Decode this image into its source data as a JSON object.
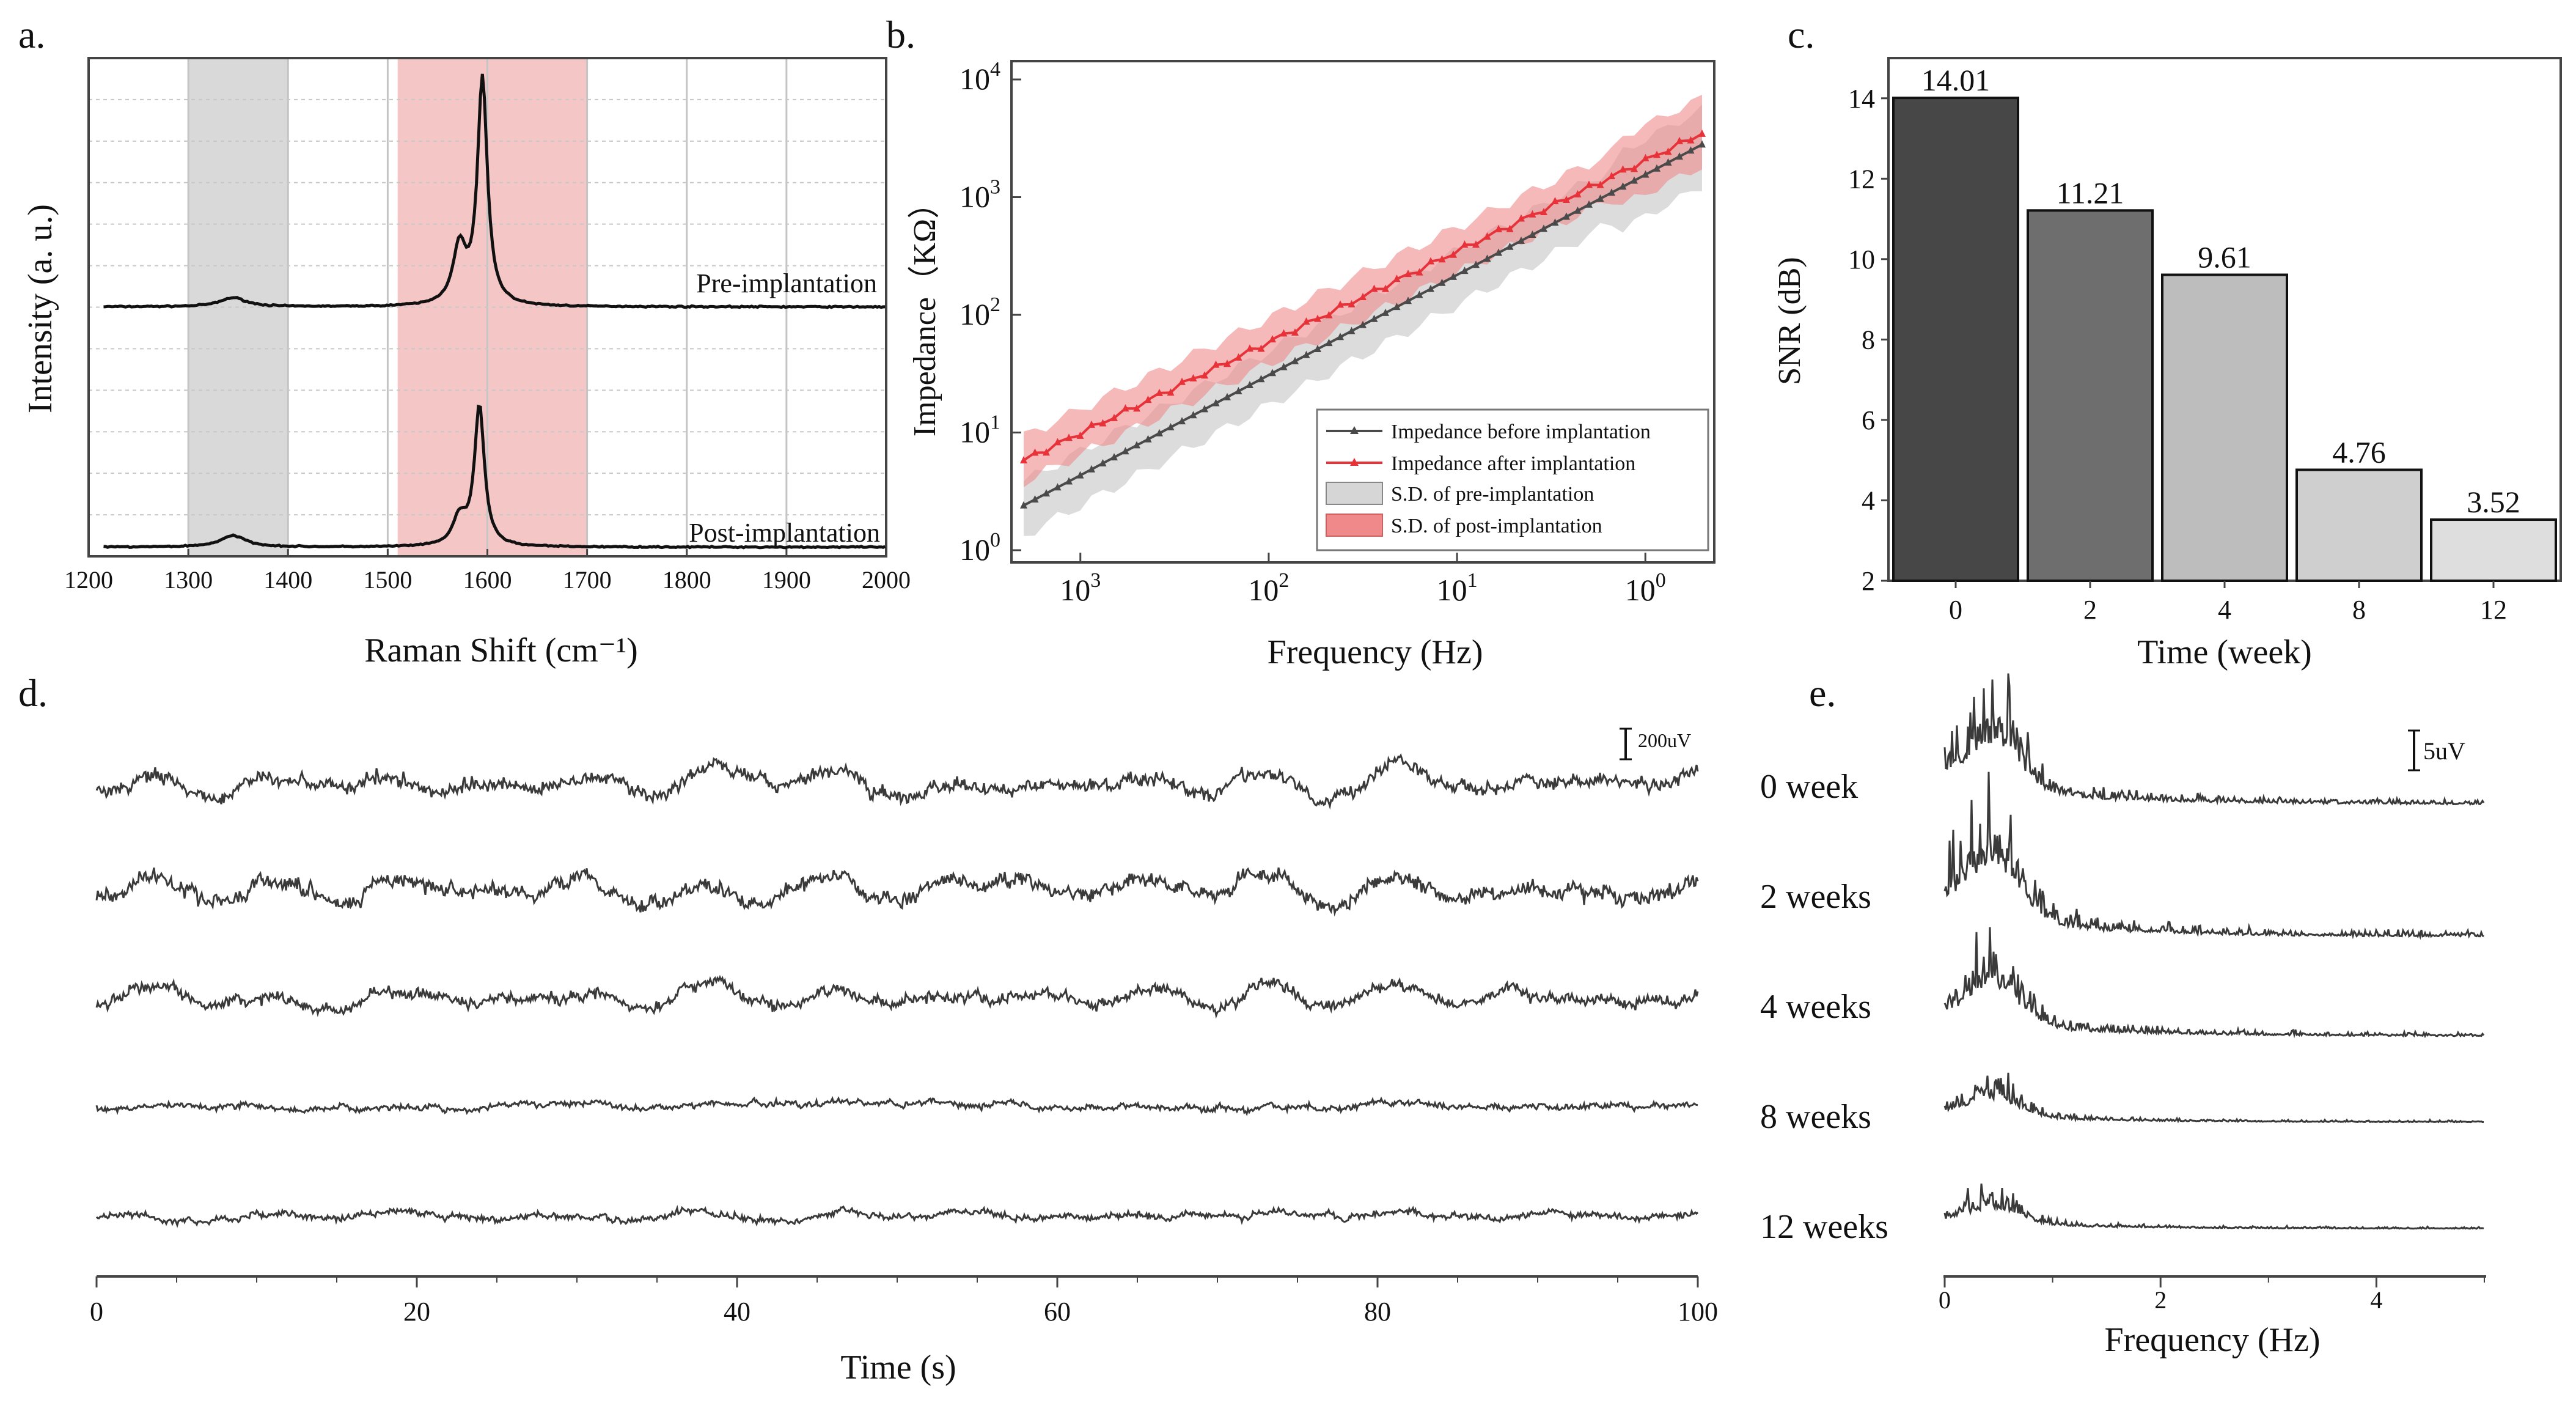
{
  "colors": {
    "trace": "#111111",
    "eeg": "#3a3a3a",
    "raman_gray_band": "#d9d9d9",
    "raman_red_band": "#f4c6c6",
    "impedance_pre": "#4a4a4a",
    "impedance_post": "#e8323a",
    "sd_pre": "#d6d6d6",
    "sd_post": "#f08a8a",
    "bars": [
      "#474747",
      "#6e6e6e",
      "#bdbdbd",
      "#cfcfcf",
      "#dedede"
    ]
  },
  "chart_data": [
    {
      "panel": "a",
      "panel_label": "a.",
      "type": "line",
      "title": "",
      "xlabel": "Raman Shift (cm⁻¹)",
      "ylabel": "Intensity (a. u.)",
      "xlim": [
        1200,
        2000
      ],
      "xticks": [
        1200,
        1300,
        1400,
        1500,
        1600,
        1700,
        1800,
        1900,
        2000
      ],
      "grid": true,
      "shaded_bands": [
        {
          "from": 1300,
          "to": 1400,
          "color": "gray"
        },
        {
          "from": 1510,
          "to": 1700,
          "color": "red"
        }
      ],
      "series": [
        {
          "name": "Pre-implantation",
          "peaks": [
            {
              "x": 1345,
              "height": 0.04
            },
            {
              "x": 1572,
              "height": 0.25
            },
            {
              "x": 1595,
              "height": 1.0
            }
          ]
        },
        {
          "name": "Post-implantation",
          "peaks": [
            {
              "x": 1345,
              "height": 0.05
            },
            {
              "x": 1572,
              "height": 0.12
            },
            {
              "x": 1592,
              "height": 0.62
            }
          ]
        }
      ]
    },
    {
      "panel": "b",
      "panel_label": "b.",
      "type": "line",
      "title": "",
      "xlabel": "Frequency (Hz)",
      "ylabel": "Impedance（KΩ）",
      "x_scale": "log",
      "x_reversed": true,
      "xlim": [
        2000,
        0.5
      ],
      "ylim": [
        1,
        10000
      ],
      "xtick_labels": [
        {
          "base": "10",
          "exp": "3"
        },
        {
          "base": "10",
          "exp": "2"
        },
        {
          "base": "10",
          "exp": "1"
        },
        {
          "base": "10",
          "exp": "0"
        }
      ],
      "ytick_labels": [
        {
          "base": "10",
          "exp": "0"
        },
        {
          "base": "10",
          "exp": "1"
        },
        {
          "base": "10",
          "exp": "2"
        },
        {
          "base": "10",
          "exp": "3"
        },
        {
          "base": "10",
          "exp": "4"
        }
      ],
      "series": [
        {
          "name": "Impedance before implantation",
          "start": {
            "x": 2000,
            "y": 2.4
          },
          "end": {
            "x": 0.5,
            "y": 2800
          }
        },
        {
          "name": "Impedance after implantation",
          "start": {
            "x": 2000,
            "y": 5.8
          },
          "end": {
            "x": 0.5,
            "y": 3500
          }
        }
      ],
      "bands": [
        {
          "name": "S.D. of pre-implantation",
          "low_factor": 0.55,
          "high_factor": 1.6
        },
        {
          "name": "S.D. of post-implantation",
          "low_factor": 0.65,
          "high_factor": 1.6
        }
      ],
      "legend": [
        "Impedance before implantation",
        "Impedance after implantation",
        "S.D. of pre-implantation",
        "S.D. of post-implantation"
      ],
      "legend_position": "bottom-right"
    },
    {
      "panel": "c",
      "panel_label": "c.",
      "type": "bar",
      "title": "",
      "xlabel": "Time (week)",
      "ylabel": "SNR (dB)",
      "categories": [
        "0",
        "2",
        "4",
        "8",
        "12"
      ],
      "values": [
        14.01,
        11.21,
        9.61,
        4.76,
        3.52
      ],
      "data_labels": [
        "14.01",
        "11.21",
        "9.61",
        "4.76",
        "3.52"
      ],
      "ylim": [
        2,
        15
      ],
      "yticks": [
        "2",
        "4",
        "6",
        "8",
        "10",
        "12",
        "14"
      ]
    },
    {
      "panel": "d",
      "panel_label": "d.",
      "type": "line",
      "title": "",
      "xlabel": "Time (s)",
      "ylabel": "",
      "xlim": [
        0,
        100
      ],
      "xticks": [
        "0",
        "20",
        "40",
        "60",
        "80",
        "100"
      ],
      "scale_bar": "200uV",
      "series": [
        {
          "name": "0 week",
          "relative_amplitude": 1.0
        },
        {
          "name": "2 weeks",
          "relative_amplitude": 1.1
        },
        {
          "name": "4 weeks",
          "relative_amplitude": 0.85
        },
        {
          "name": "8 weeks",
          "relative_amplitude": 0.45
        },
        {
          "name": "12 weeks",
          "relative_amplitude": 0.5
        }
      ]
    },
    {
      "panel": "e",
      "panel_label": "e.",
      "type": "line",
      "title": "",
      "xlabel": "Frequency (Hz)",
      "ylabel": "",
      "xlim": [
        0,
        5
      ],
      "xticks": [
        "0",
        "2",
        "4"
      ],
      "scale_bar": "5uV",
      "series": [
        {
          "name": "0 week",
          "relative_amplitude": 1.0
        },
        {
          "name": "2 weeks",
          "relative_amplitude": 1.0
        },
        {
          "name": "4 weeks",
          "relative_amplitude": 0.55
        },
        {
          "name": "8 weeks",
          "relative_amplitude": 0.25
        },
        {
          "name": "12 weeks",
          "relative_amplitude": 0.22
        }
      ]
    }
  ]
}
